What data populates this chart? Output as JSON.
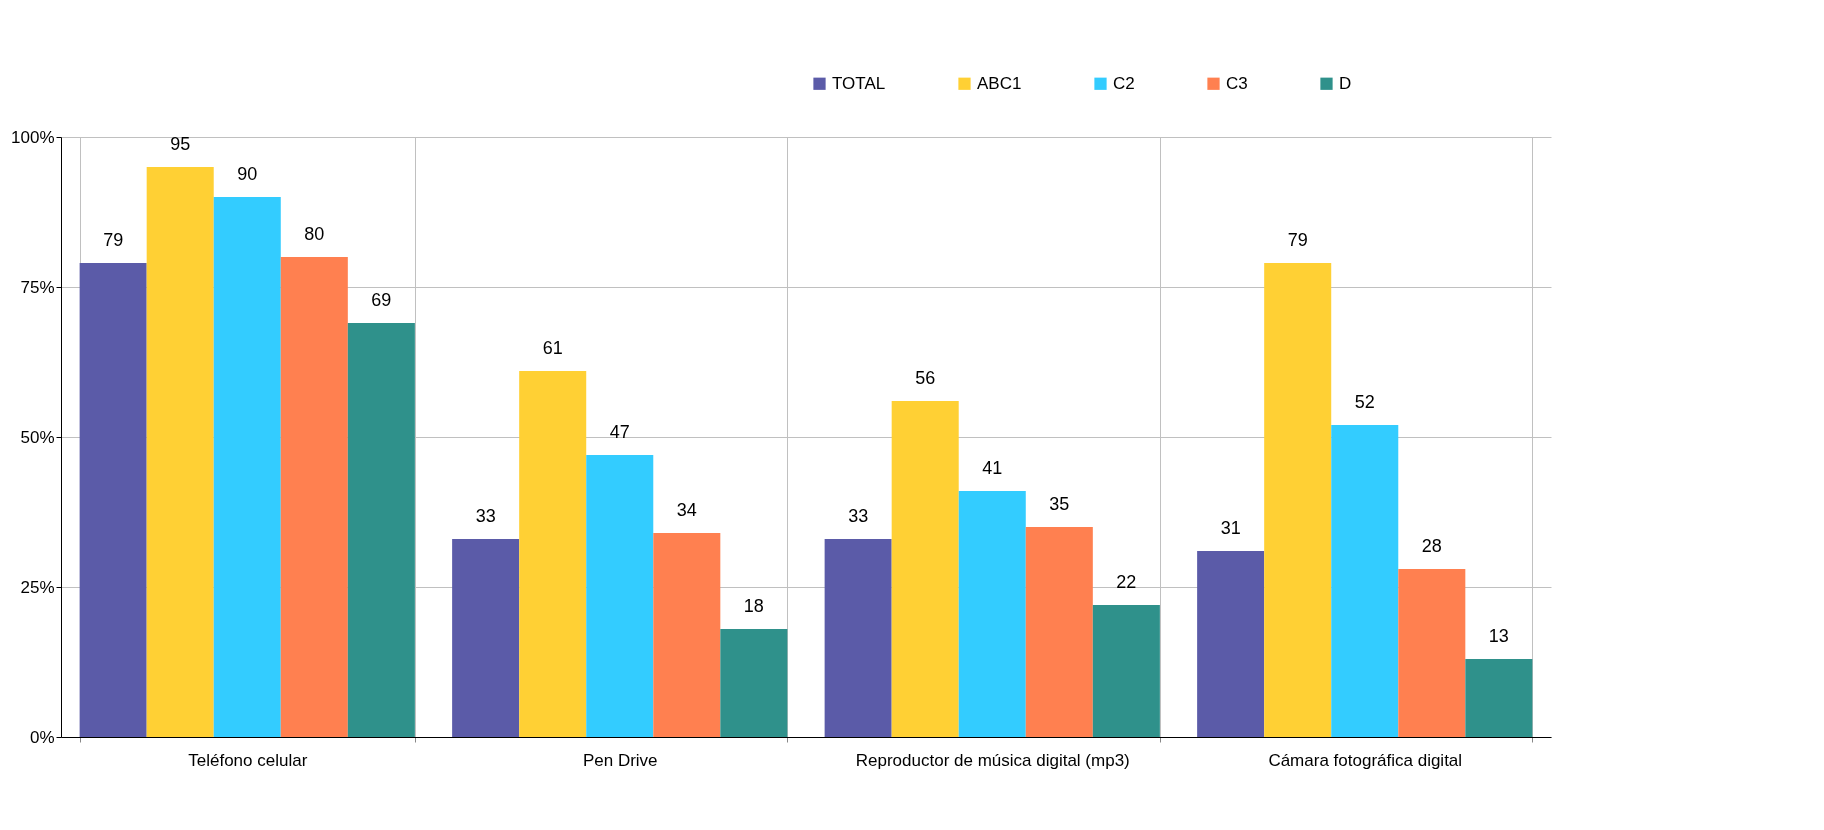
{
  "chart_data": {
    "type": "bar",
    "categories": [
      "Teléfono celular",
      "Pen Drive",
      "Reproductor de música digital (mp3)",
      "Cámara fotográfica digital"
    ],
    "series": [
      {
        "name": "TOTAL",
        "color": "#5b5ba8",
        "values": [
          79,
          33,
          33,
          31
        ]
      },
      {
        "name": "ABC1",
        "color": "#ffd034",
        "values": [
          95,
          61,
          56,
          79
        ]
      },
      {
        "name": "C2",
        "color": "#33ccff",
        "values": [
          90,
          47,
          41,
          52
        ]
      },
      {
        "name": "C3",
        "color": "#ff8050",
        "values": [
          80,
          34,
          35,
          28
        ]
      },
      {
        "name": "D",
        "color": "#2f918b",
        "values": [
          69,
          18,
          22,
          13
        ]
      }
    ],
    "ylim": [
      0,
      100
    ],
    "yticks": [
      {
        "value": 0,
        "label": "0%"
      },
      {
        "value": 25,
        "label": "25%"
      },
      {
        "value": 50,
        "label": "50%"
      },
      {
        "value": 75,
        "label": "75%"
      },
      {
        "value": 100,
        "label": "100%"
      }
    ],
    "grid": true,
    "legend": "top right",
    "data_labels": true
  }
}
